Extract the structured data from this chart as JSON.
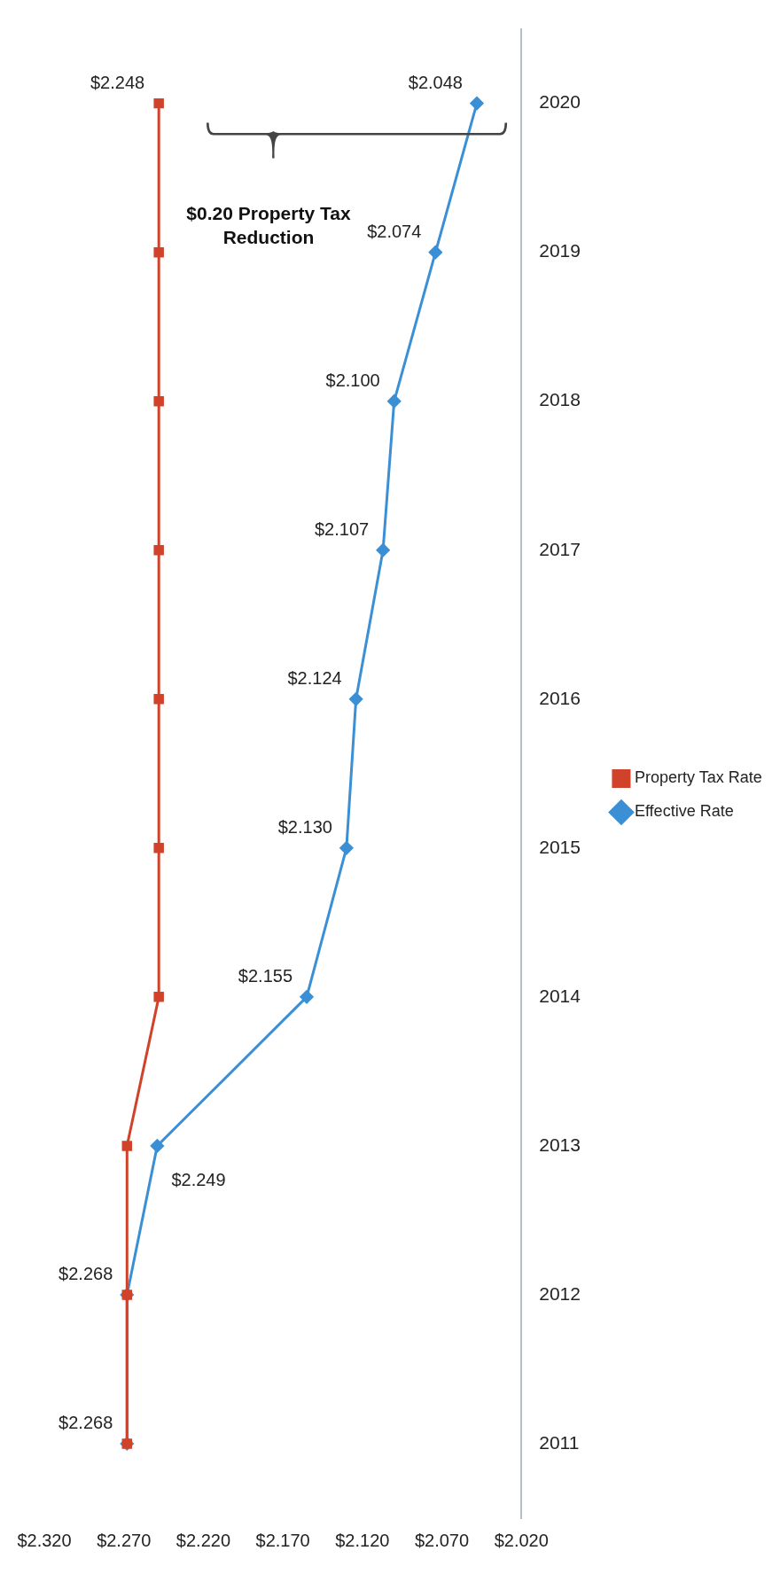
{
  "chart_data": {
    "type": "line",
    "orientation": "horizontal",
    "categories": [
      "2020",
      "2019",
      "2018",
      "2017",
      "2016",
      "2015",
      "2014",
      "2013",
      "2012",
      "2011"
    ],
    "series": [
      {
        "name": "Property Tax Rate",
        "color": "#d0432a",
        "marker": "square",
        "values": [
          2.248,
          2.248,
          2.248,
          2.248,
          2.248,
          2.248,
          2.248,
          2.268,
          2.268,
          2.268
        ],
        "value_labels": [
          "$2.248",
          null,
          null,
          null,
          null,
          null,
          null,
          null,
          null,
          null
        ]
      },
      {
        "name": "Effective Rate",
        "color": "#3b8fd4",
        "marker": "diamond",
        "values": [
          2.048,
          2.074,
          2.1,
          2.107,
          2.124,
          2.13,
          2.155,
          2.249,
          2.268,
          2.268
        ],
        "value_labels": [
          "$2.048",
          "$2.074",
          "$2.100",
          "$2.107",
          "$2.124",
          "$2.130",
          "$2.155",
          "$2.249",
          "$2.268",
          "$2.268"
        ]
      }
    ],
    "xlim": [
      2.32,
      2.02
    ],
    "xticks": [
      {
        "value": 2.32,
        "label": "$2.320"
      },
      {
        "value": 2.27,
        "label": "$2.270"
      },
      {
        "value": 2.22,
        "label": "$2.220"
      },
      {
        "value": 2.17,
        "label": "$2.170"
      },
      {
        "value": 2.12,
        "label": "$2.120"
      },
      {
        "value": 2.07,
        "label": "$2.070"
      },
      {
        "value": 2.02,
        "label": "$2.020"
      }
    ],
    "legend": "right",
    "grid": false,
    "annotations": [
      "$0.20 Property Tax Reduction"
    ]
  }
}
